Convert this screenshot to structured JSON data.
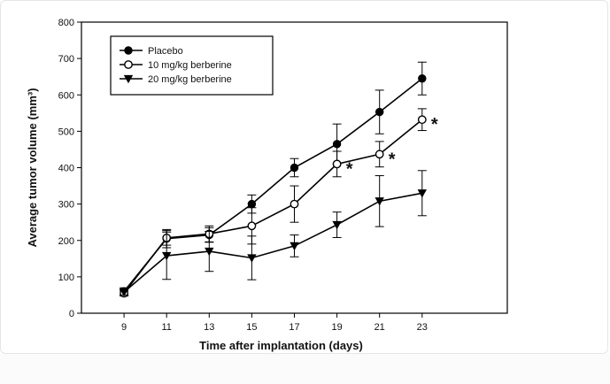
{
  "chart_data": {
    "type": "line",
    "title": "",
    "xlabel": "Time after implantation (days)",
    "ylabel": "Average tumor volume (mm³)",
    "x": [
      9,
      11,
      13,
      15,
      17,
      19,
      21,
      23
    ],
    "xlim": [
      7,
      27
    ],
    "ylim": [
      0,
      800
    ],
    "yticks": [
      0,
      100,
      200,
      300,
      400,
      500,
      600,
      700,
      800
    ],
    "xticks": [
      9,
      11,
      13,
      15,
      17,
      19,
      21,
      23
    ],
    "grid": false,
    "legend_position": "top-left",
    "series": [
      {
        "name": "Placebo",
        "marker": "filled-circle",
        "values": [
          60,
          205,
          215,
          300,
          400,
          465,
          553,
          645
        ],
        "errors": [
          10,
          25,
          20,
          25,
          25,
          55,
          60,
          45
        ]
      },
      {
        "name": "10 mg/kg berberine",
        "marker": "open-circle",
        "values": [
          55,
          207,
          218,
          240,
          300,
          410,
          437,
          532
        ],
        "errors": [
          8,
          20,
          22,
          50,
          50,
          35,
          35,
          30
        ]
      },
      {
        "name": "20 mg/kg berberine",
        "marker": "filled-triangle-down",
        "values": [
          58,
          158,
          170,
          152,
          185,
          243,
          308,
          330
        ],
        "errors": [
          8,
          65,
          55,
          60,
          30,
          35,
          70,
          62
        ]
      }
    ],
    "annotations": [
      {
        "text": "*",
        "series": 1,
        "x": 19
      },
      {
        "text": "*",
        "series": 1,
        "x": 21
      },
      {
        "text": "*",
        "series": 1,
        "x": 23
      }
    ]
  }
}
